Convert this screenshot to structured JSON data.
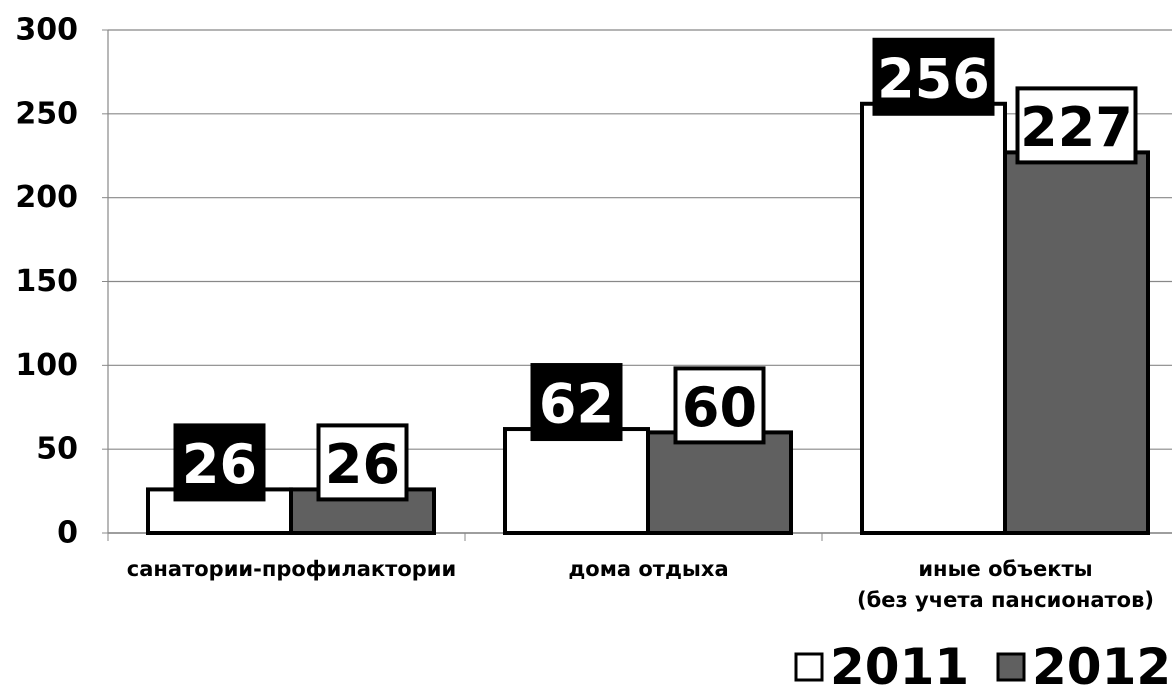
{
  "chart_data": {
    "type": "bar",
    "categories": [
      "санатории-профилактории",
      "дома отдыха",
      "иные объекты\n(без учета пансионатов)"
    ],
    "series": [
      {
        "name": "2011",
        "color": "#ffffff",
        "label_fill": "#000000",
        "values": [
          26,
          62,
          256
        ]
      },
      {
        "name": "2012",
        "color": "#606060",
        "label_fill": "#ffffff",
        "values": [
          26,
          60,
          227
        ]
      }
    ],
    "ylim": [
      0,
      300
    ],
    "yticks": [
      0,
      50,
      100,
      150,
      200,
      250,
      300
    ],
    "grid": true,
    "legend": "bottom-right"
  }
}
